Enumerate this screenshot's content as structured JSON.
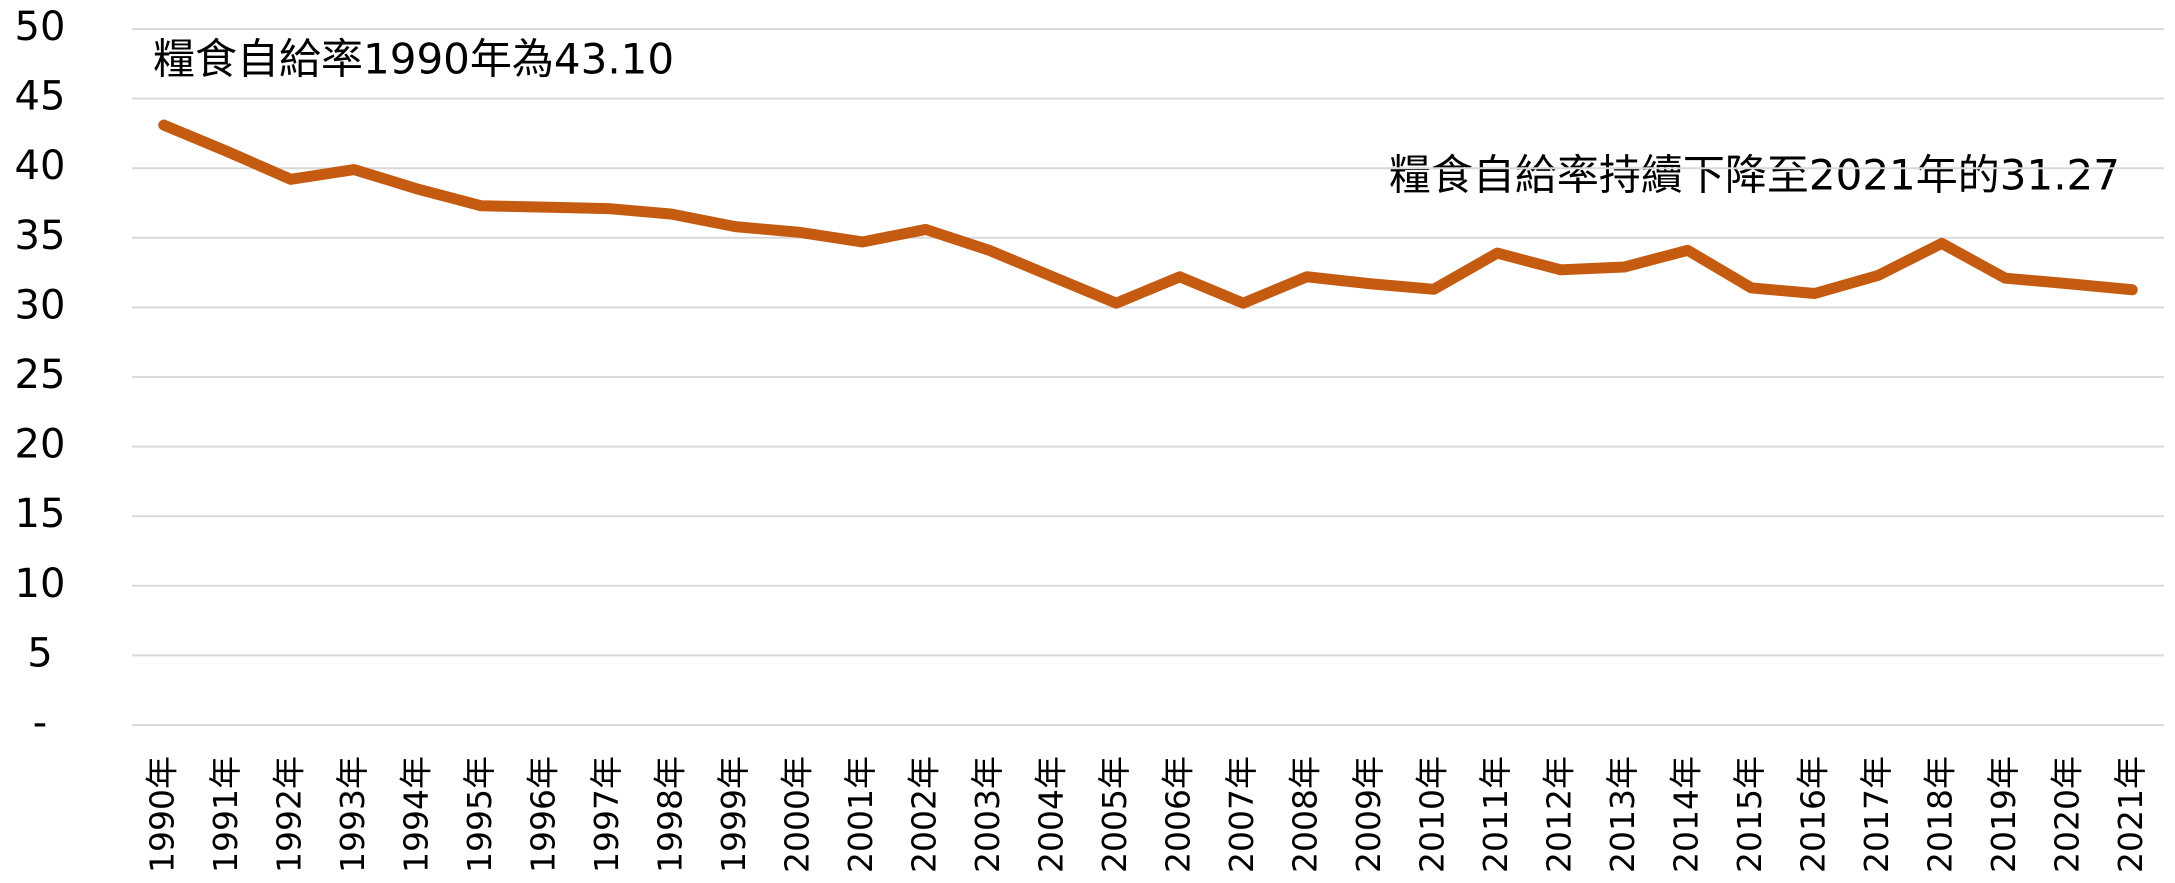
{
  "chart_data": {
    "type": "line",
    "annotations": [
      "糧食自給率1990年為43.10",
      "糧食自給率持續下降至2021年的31.27"
    ],
    "categories": [
      "1990年",
      "1991年",
      "1992年",
      "1993年",
      "1994年",
      "1995年",
      "1996年",
      "1997年",
      "1998年",
      "1999年",
      "2000年",
      "2001年",
      "2002年",
      "2003年",
      "2004年",
      "2005年",
      "2006年",
      "2007年",
      "2008年",
      "2009年",
      "2010年",
      "2011年",
      "2012年",
      "2013年",
      "2014年",
      "2015年",
      "2016年",
      "2017年",
      "2018年",
      "2019年",
      "2020年",
      "2021年"
    ],
    "series": [
      {
        "color": "#c55a11",
        "values": [
          43.1,
          41.2,
          39.2,
          39.9,
          38.5,
          37.3,
          37.2,
          37.1,
          36.7,
          35.8,
          35.4,
          34.7,
          35.6,
          34.1,
          32.2,
          30.3,
          32.2,
          30.3,
          32.2,
          31.7,
          31.3,
          33.9,
          32.7,
          32.9,
          34.1,
          31.4,
          31.0,
          32.3,
          34.6,
          32.1,
          31.7,
          31.27
        ]
      }
    ],
    "ylim": [
      0,
      50
    ],
    "yticks": [
      {
        "value": 0,
        "label": "-"
      },
      5,
      10,
      15,
      20,
      25,
      30,
      35,
      40,
      45,
      50
    ],
    "grid": true
  }
}
